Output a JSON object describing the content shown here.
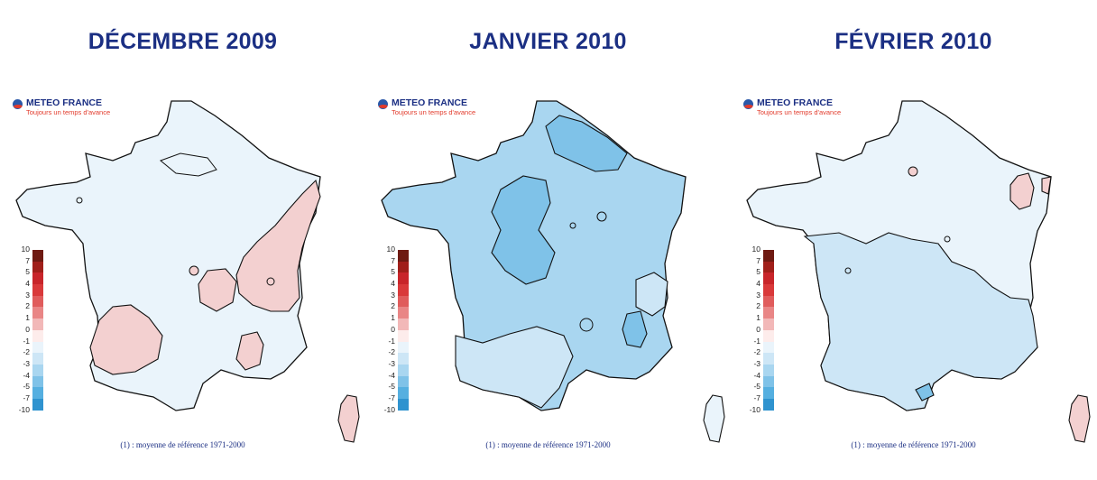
{
  "brand": {
    "name": "METEO FRANCE",
    "tagline": "Toujours un temps d'avance"
  },
  "footnote": "(1) : moyenne de référence 1971-2000",
  "scale": {
    "labels": [
      "10",
      "7",
      "5",
      "4",
      "3",
      "2",
      "1",
      "0",
      "-1",
      "-2",
      "-3",
      "-4",
      "-5",
      "-7",
      "-10"
    ],
    "colors": [
      "#6e1a12",
      "#a01f1a",
      "#c8252a",
      "#d9393a",
      "#e05c5c",
      "#e98686",
      "#f2b8b8",
      "#fdeceb",
      "#eaf4fb",
      "#cde6f6",
      "#a9d6f0",
      "#7fc2e8",
      "#55afe0",
      "#2f93cf",
      "#1a6fa8"
    ]
  },
  "panels": [
    {
      "title": "DÉCEMBRE 2009",
      "base_color": "#eaf4fb"
    },
    {
      "title": "JANVIER 2010",
      "base_color": "#a9d6f0"
    },
    {
      "title": "FÉVRIER 2010",
      "base_color": "#eaf4fb"
    }
  ]
}
